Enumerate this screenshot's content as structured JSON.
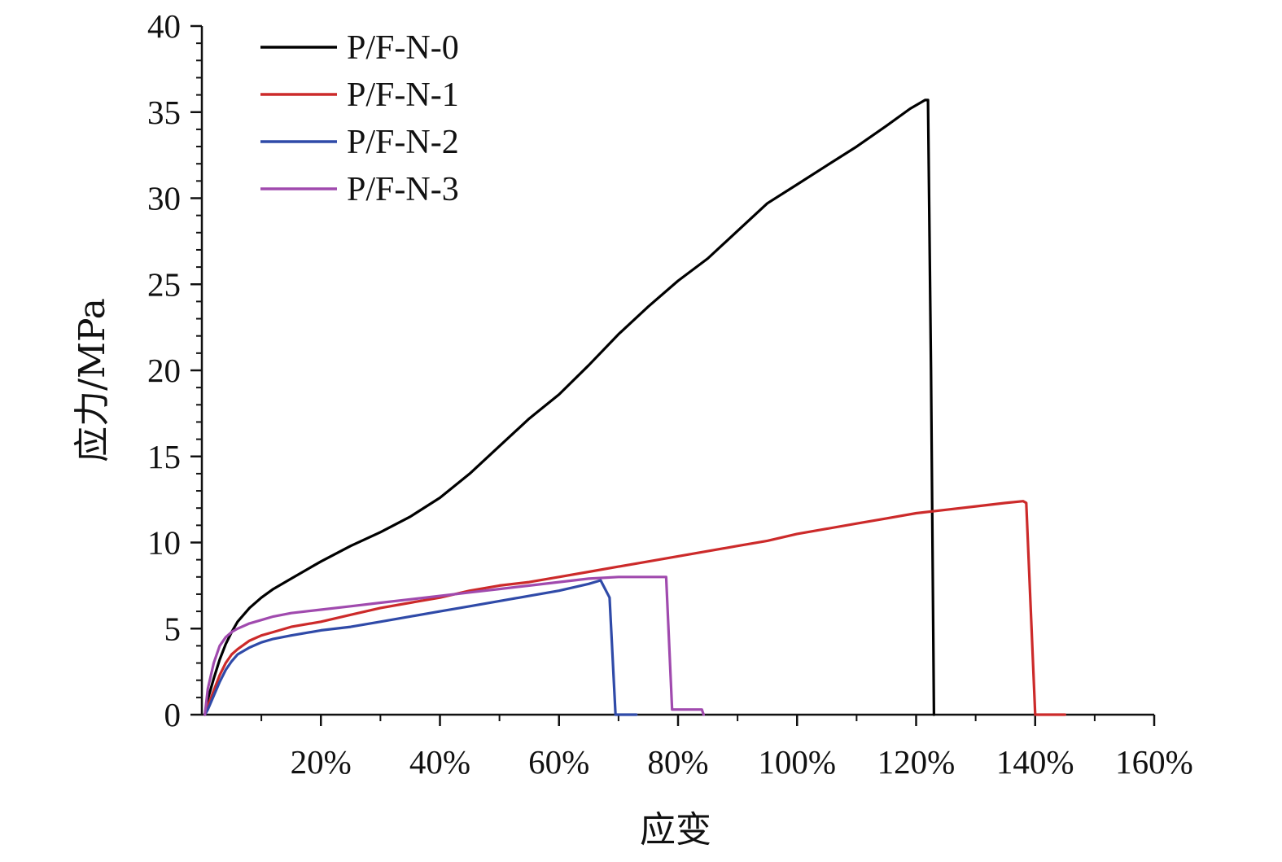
{
  "chart_data": {
    "type": "line",
    "xlabel": "应变",
    "ylabel": "应力/MPa",
    "xlim": [
      0,
      160
    ],
    "ylim": [
      0,
      40
    ],
    "x_unit": "%",
    "y_unit": "MPa",
    "x_ticks": [
      20,
      40,
      60,
      80,
      100,
      120,
      140,
      160
    ],
    "x_tick_labels": [
      "20%",
      "40%",
      "60%",
      "80%",
      "100%",
      "120%",
      "140%",
      "160%"
    ],
    "y_ticks": [
      0,
      5,
      10,
      15,
      20,
      25,
      30,
      35,
      40
    ],
    "y_tick_labels": [
      "0",
      "5",
      "10",
      "15",
      "20",
      "25",
      "30",
      "35",
      "40"
    ],
    "legend_position": "top-left",
    "grid": false,
    "series": [
      {
        "name": "P/F-N-0",
        "color": "#000000",
        "points": [
          [
            0.5,
            0
          ],
          [
            1,
            0.9
          ],
          [
            2,
            2.1
          ],
          [
            3,
            3.2
          ],
          [
            4,
            4.1
          ],
          [
            5,
            4.8
          ],
          [
            6,
            5.4
          ],
          [
            8,
            6.2
          ],
          [
            10,
            6.8
          ],
          [
            12,
            7.3
          ],
          [
            15,
            7.9
          ],
          [
            18,
            8.5
          ],
          [
            20,
            8.9
          ],
          [
            25,
            9.8
          ],
          [
            30,
            10.6
          ],
          [
            35,
            11.5
          ],
          [
            40,
            12.6
          ],
          [
            45,
            14.0
          ],
          [
            50,
            15.6
          ],
          [
            55,
            17.2
          ],
          [
            60,
            18.6
          ],
          [
            65,
            20.3
          ],
          [
            70,
            22.1
          ],
          [
            75,
            23.7
          ],
          [
            80,
            25.2
          ],
          [
            85,
            26.5
          ],
          [
            90,
            28.1
          ],
          [
            95,
            29.7
          ],
          [
            100,
            30.8
          ],
          [
            105,
            31.9
          ],
          [
            110,
            33.0
          ],
          [
            115,
            34.2
          ],
          [
            119,
            35.2
          ],
          [
            121.5,
            35.7
          ],
          [
            122,
            35.7
          ],
          [
            122.5,
            20
          ],
          [
            123,
            0
          ]
        ]
      },
      {
        "name": "P/F-N-1",
        "color": "#cc2a2a",
        "points": [
          [
            0.5,
            0
          ],
          [
            1,
            0.5
          ],
          [
            2,
            1.4
          ],
          [
            3,
            2.3
          ],
          [
            4,
            3.0
          ],
          [
            5,
            3.5
          ],
          [
            6,
            3.8
          ],
          [
            8,
            4.3
          ],
          [
            10,
            4.6
          ],
          [
            12,
            4.8
          ],
          [
            15,
            5.1
          ],
          [
            20,
            5.4
          ],
          [
            25,
            5.8
          ],
          [
            30,
            6.2
          ],
          [
            35,
            6.5
          ],
          [
            40,
            6.8
          ],
          [
            45,
            7.2
          ],
          [
            50,
            7.5
          ],
          [
            55,
            7.7
          ],
          [
            60,
            8.0
          ],
          [
            65,
            8.3
          ],
          [
            70,
            8.6
          ],
          [
            75,
            8.9
          ],
          [
            80,
            9.2
          ],
          [
            85,
            9.5
          ],
          [
            90,
            9.8
          ],
          [
            95,
            10.1
          ],
          [
            100,
            10.5
          ],
          [
            105,
            10.8
          ],
          [
            110,
            11.1
          ],
          [
            115,
            11.4
          ],
          [
            120,
            11.7
          ],
          [
            125,
            11.9
          ],
          [
            130,
            12.1
          ],
          [
            135,
            12.3
          ],
          [
            138,
            12.4
          ],
          [
            138.5,
            12.3
          ],
          [
            140,
            0
          ],
          [
            145,
            0
          ]
        ]
      },
      {
        "name": "P/F-N-2",
        "color": "#2f4aa8",
        "points": [
          [
            0.5,
            0
          ],
          [
            1,
            0.3
          ],
          [
            2,
            1.1
          ],
          [
            3,
            1.9
          ],
          [
            4,
            2.6
          ],
          [
            5,
            3.1
          ],
          [
            6,
            3.5
          ],
          [
            8,
            3.9
          ],
          [
            10,
            4.2
          ],
          [
            12,
            4.4
          ],
          [
            15,
            4.6
          ],
          [
            20,
            4.9
          ],
          [
            25,
            5.1
          ],
          [
            30,
            5.4
          ],
          [
            35,
            5.7
          ],
          [
            40,
            6.0
          ],
          [
            45,
            6.3
          ],
          [
            50,
            6.6
          ],
          [
            55,
            6.9
          ],
          [
            60,
            7.2
          ],
          [
            65,
            7.6
          ],
          [
            67,
            7.8
          ],
          [
            68.5,
            6.8
          ],
          [
            69.5,
            0
          ],
          [
            73,
            0
          ]
        ]
      },
      {
        "name": "P/F-N-3",
        "color": "#a04aae",
        "points": [
          [
            0.5,
            0
          ],
          [
            1,
            1.5
          ],
          [
            2,
            3.0
          ],
          [
            3,
            4.0
          ],
          [
            4,
            4.5
          ],
          [
            5,
            4.8
          ],
          [
            6,
            5.0
          ],
          [
            8,
            5.3
          ],
          [
            10,
            5.5
          ],
          [
            12,
            5.7
          ],
          [
            15,
            5.9
          ],
          [
            20,
            6.1
          ],
          [
            25,
            6.3
          ],
          [
            30,
            6.5
          ],
          [
            35,
            6.7
          ],
          [
            40,
            6.9
          ],
          [
            45,
            7.1
          ],
          [
            50,
            7.3
          ],
          [
            55,
            7.5
          ],
          [
            60,
            7.7
          ],
          [
            65,
            7.9
          ],
          [
            70,
            8.0
          ],
          [
            75,
            8.0
          ],
          [
            78,
            8.0
          ],
          [
            79,
            0.3
          ],
          [
            84,
            0.3
          ],
          [
            84.3,
            0
          ]
        ]
      }
    ]
  }
}
